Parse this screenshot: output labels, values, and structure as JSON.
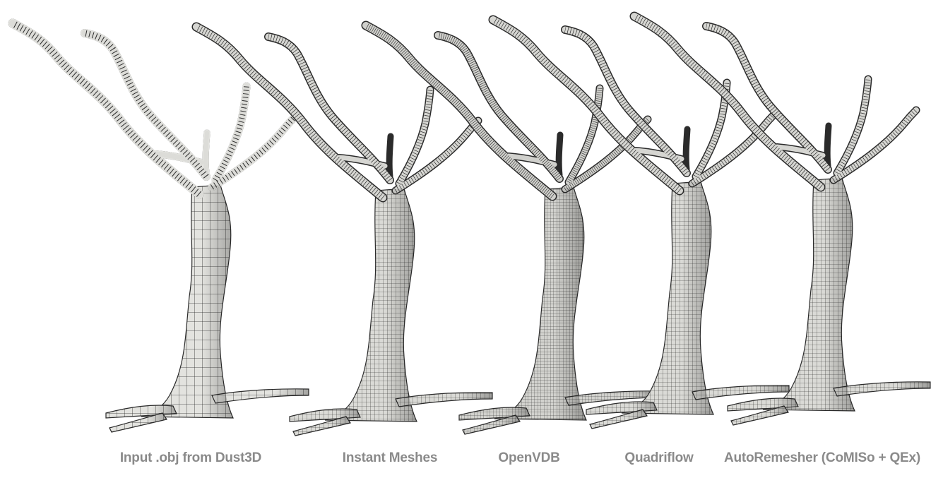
{
  "figure": {
    "panels": [
      {
        "caption": "Input .obj from Dust3D",
        "style": "coarse"
      },
      {
        "caption": "Instant Meshes",
        "style": "fine"
      },
      {
        "caption": "OpenVDB",
        "style": "dense"
      },
      {
        "caption": "Quadriflow",
        "style": "fine"
      },
      {
        "caption": "AutoRemesher (CoMISo + QEx)",
        "style": "fine"
      }
    ],
    "colors": {
      "mesh_fill": "#dcdcd8",
      "mesh_fill_dark": "#b9b9b4",
      "wire": "#2b2b2b",
      "caption": "#8a8a8a"
    }
  }
}
